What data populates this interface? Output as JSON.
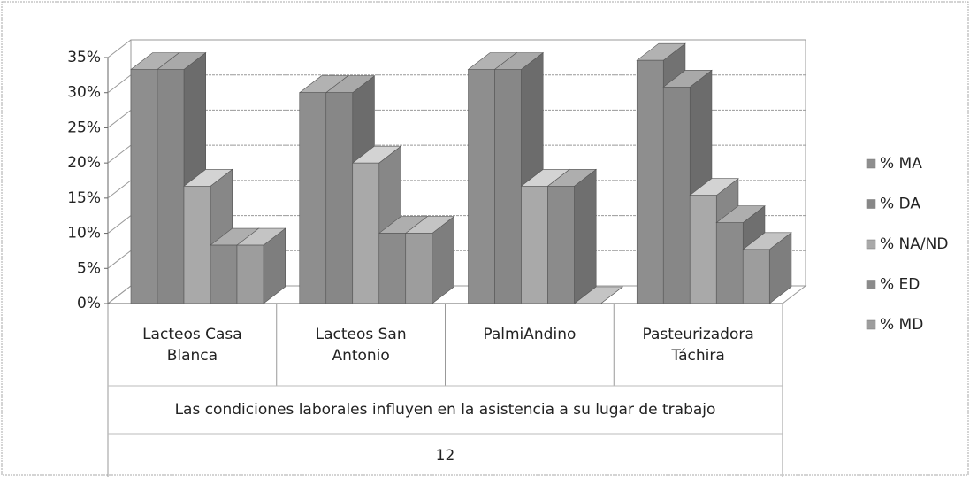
{
  "chart_data": {
    "type": "bar3d",
    "categories": [
      "Lacteos Casa Blanca",
      "Lacteos San Antonio",
      "PalmiAndino",
      "Pasteurizadora Táchira"
    ],
    "x_label": "Las condiciones laborales influyen en la asistencia a su lugar de trabajo",
    "x_label_2": "12",
    "series": [
      {
        "name": "% MA",
        "color": "#8e8e8e",
        "values": [
          33.3,
          30,
          33.3,
          34.6
        ]
      },
      {
        "name": "% DA",
        "color": "#878787",
        "values": [
          33.3,
          30,
          33.3,
          30.8
        ]
      },
      {
        "name": "% NA/ND",
        "color": "#a9a9a9",
        "values": [
          16.7,
          20,
          16.7,
          15.4
        ]
      },
      {
        "name": "% ED",
        "color": "#8b8b8b",
        "values": [
          8.3,
          10,
          16.7,
          11.5
        ]
      },
      {
        "name": "% MD",
        "color": "#9d9d9d",
        "values": [
          8.3,
          10,
          0,
          7.7
        ]
      }
    ],
    "ylim": [
      0,
      35
    ],
    "yticks": [
      {
        "value": 0,
        "label": "0%"
      },
      {
        "value": 5,
        "label": "5%"
      },
      {
        "value": 10,
        "label": "10%"
      },
      {
        "value": 15,
        "label": "15%"
      },
      {
        "value": 20,
        "label": "20%"
      },
      {
        "value": 25,
        "label": "25%"
      },
      {
        "value": 30,
        "label": "30%"
      },
      {
        "value": 35,
        "label": "35%"
      }
    ],
    "grid": true,
    "legend": "right"
  }
}
